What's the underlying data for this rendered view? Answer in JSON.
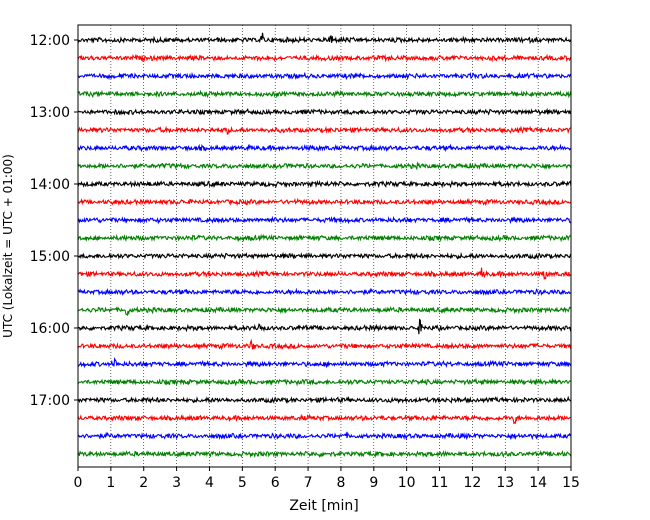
{
  "chart_data": {
    "type": "line",
    "title": "",
    "xlabel": "Zeit  [min]",
    "ylabel": "UTC (Lokalzeit = UTC + 01:00)",
    "xlim": [
      0,
      15
    ],
    "x_ticks": [
      0,
      1,
      2,
      3,
      4,
      5,
      6,
      7,
      8,
      9,
      10,
      11,
      12,
      13,
      14,
      15
    ],
    "x_grid": "dotted",
    "y_tick_labels": [
      "12:00",
      "13:00",
      "14:00",
      "15:00",
      "16:00",
      "17:00"
    ],
    "trace_start_utc": "12:00",
    "trace_interval_min": 15,
    "trace_count": 24,
    "trace_colors": [
      "#000000",
      "#ff0000",
      "#0000ff",
      "#008000"
    ],
    "events": [
      {
        "trace": 0,
        "minute": 7.7
      },
      {
        "trace": 0,
        "minute": 5.6
      },
      {
        "trace": 5,
        "minute": 4.5
      },
      {
        "trace": 13,
        "minute": 12.3
      },
      {
        "trace": 13,
        "minute": 14.2
      },
      {
        "trace": 15,
        "minute": 1.5
      },
      {
        "trace": 16,
        "minute": 5.5
      },
      {
        "trace": 16,
        "minute": 10.4
      },
      {
        "trace": 17,
        "minute": 5.3
      },
      {
        "trace": 18,
        "minute": 1.1
      },
      {
        "trace": 21,
        "minute": 13.3
      }
    ]
  }
}
